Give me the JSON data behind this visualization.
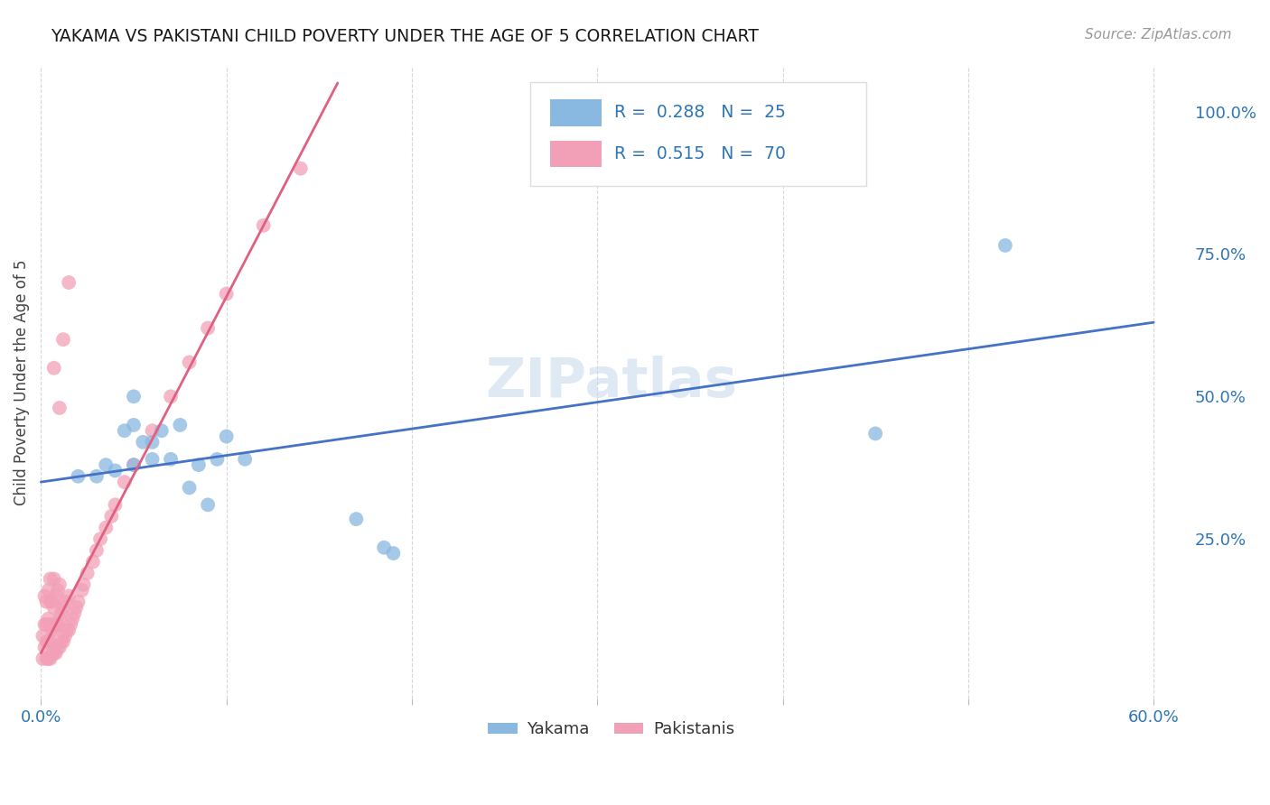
{
  "title": "YAKAMA VS PAKISTANI CHILD POVERTY UNDER THE AGE OF 5 CORRELATION CHART",
  "source_text": "Source: ZipAtlas.com",
  "ylabel": "Child Poverty Under the Age of 5",
  "xlim": [
    -0.005,
    0.62
  ],
  "ylim": [
    -0.03,
    1.08
  ],
  "xtick_positions": [
    0.0,
    0.1,
    0.2,
    0.3,
    0.4,
    0.5,
    0.6
  ],
  "xticklabels": [
    "0.0%",
    "",
    "",
    "",
    "",
    "",
    "60.0%"
  ],
  "yticks_right": [
    0.25,
    0.5,
    0.75,
    1.0
  ],
  "ytick_labels_right": [
    "25.0%",
    "50.0%",
    "75.0%",
    "100.0%"
  ],
  "yakama_color": "#89b8e0",
  "pakistani_color": "#f2a0b8",
  "yakama_line_color": "#4472c4",
  "pakistani_line_color": "#e06080",
  "legend_label_yakama": "Yakama",
  "legend_label_pakistani": "Pakistanis",
  "watermark": "ZIPatlas",
  "background_color": "#ffffff",
  "grid_color": "#cccccc",
  "title_color": "#1a1a1a",
  "axis_label_color": "#444444",
  "r_value_color": "#2e75b6",
  "yakama_x": [
    0.02,
    0.04,
    0.045,
    0.05,
    0.05,
    0.05,
    0.055,
    0.06,
    0.065,
    0.07,
    0.075,
    0.08,
    0.085,
    0.09,
    0.095,
    0.1,
    0.11,
    0.17,
    0.185,
    0.19,
    0.45,
    0.52,
    0.03,
    0.035,
    0.06
  ],
  "yakama_y": [
    0.36,
    0.37,
    0.44,
    0.38,
    0.45,
    0.5,
    0.42,
    0.39,
    0.44,
    0.39,
    0.45,
    0.34,
    0.38,
    0.31,
    0.39,
    0.43,
    0.39,
    0.285,
    0.235,
    0.225,
    0.435,
    0.765,
    0.36,
    0.38,
    0.42
  ],
  "pakistani_x": [
    0.001,
    0.001,
    0.002,
    0.002,
    0.002,
    0.003,
    0.003,
    0.003,
    0.003,
    0.004,
    0.004,
    0.004,
    0.004,
    0.005,
    0.005,
    0.005,
    0.005,
    0.005,
    0.006,
    0.006,
    0.006,
    0.007,
    0.007,
    0.007,
    0.007,
    0.008,
    0.008,
    0.008,
    0.009,
    0.009,
    0.009,
    0.01,
    0.01,
    0.01,
    0.011,
    0.011,
    0.012,
    0.012,
    0.013,
    0.013,
    0.014,
    0.015,
    0.015,
    0.016,
    0.017,
    0.018,
    0.019,
    0.02,
    0.022,
    0.023,
    0.025,
    0.028,
    0.03,
    0.032,
    0.035,
    0.038,
    0.04,
    0.045,
    0.05,
    0.06,
    0.07,
    0.08,
    0.09,
    0.1,
    0.12,
    0.14,
    0.007,
    0.01,
    0.012,
    0.015
  ],
  "pakistani_y": [
    0.04,
    0.08,
    0.06,
    0.1,
    0.15,
    0.04,
    0.07,
    0.1,
    0.14,
    0.04,
    0.07,
    0.11,
    0.16,
    0.04,
    0.07,
    0.1,
    0.14,
    0.18,
    0.05,
    0.09,
    0.14,
    0.05,
    0.09,
    0.13,
    0.18,
    0.05,
    0.1,
    0.15,
    0.06,
    0.1,
    0.16,
    0.06,
    0.11,
    0.17,
    0.07,
    0.12,
    0.07,
    0.13,
    0.08,
    0.14,
    0.09,
    0.09,
    0.15,
    0.1,
    0.11,
    0.12,
    0.13,
    0.14,
    0.16,
    0.17,
    0.19,
    0.21,
    0.23,
    0.25,
    0.27,
    0.29,
    0.31,
    0.35,
    0.38,
    0.44,
    0.5,
    0.56,
    0.62,
    0.68,
    0.8,
    0.9,
    0.55,
    0.48,
    0.6,
    0.7
  ],
  "yakama_trendline_x": [
    0.0,
    0.6
  ],
  "yakama_trendline_y": [
    0.35,
    0.63
  ],
  "pakistani_trendline_x": [
    0.0,
    0.16
  ],
  "pakistani_trendline_y": [
    0.05,
    1.05
  ]
}
